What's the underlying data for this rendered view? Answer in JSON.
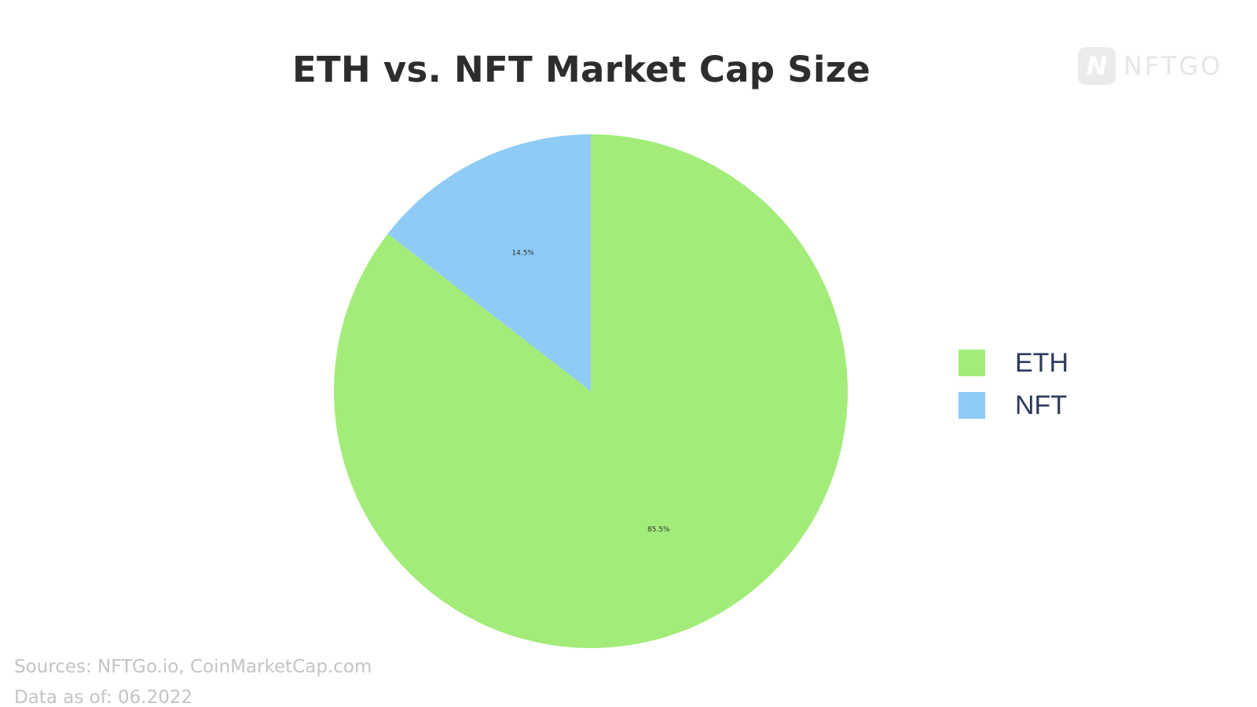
{
  "chart_data": {
    "type": "pie",
    "title": "ETH vs. NFT Market Cap Size",
    "categories": [
      "ETH",
      "NFT"
    ],
    "values": [
      85.5,
      14.5
    ],
    "labels": [
      "85.5%",
      "14.5%"
    ],
    "colors": [
      "#a3ec7a",
      "#8ecbf5"
    ],
    "legend_position": "right"
  },
  "logo": {
    "text": "NFTGO",
    "mark": "N"
  },
  "footer": {
    "sources": "Sources: NFTGo.io, CoinMarketCap.com",
    "data_as_of": "Data as of: 06.2022"
  }
}
